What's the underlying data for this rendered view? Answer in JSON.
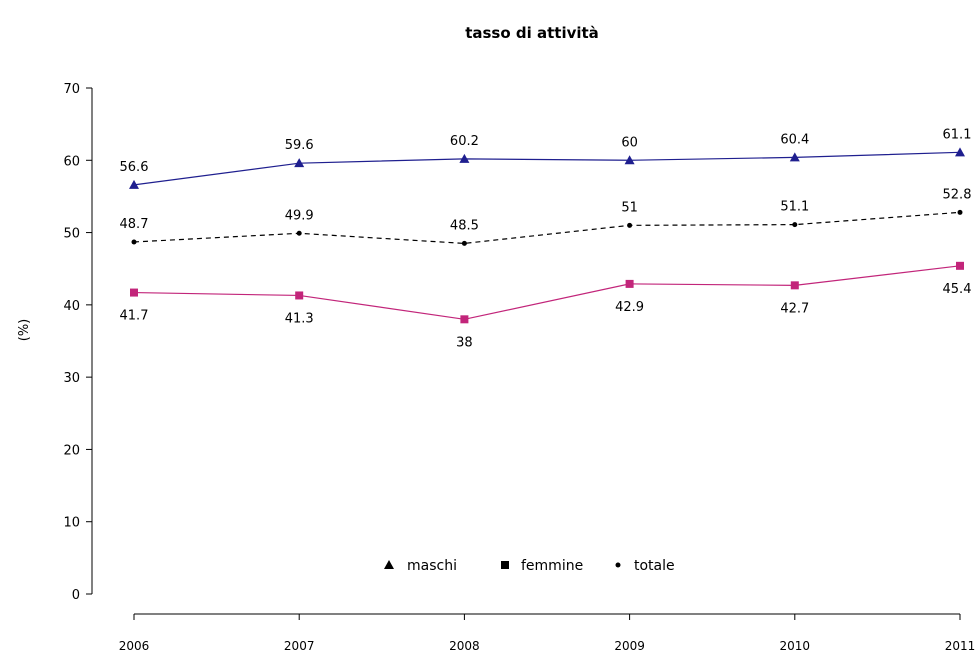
{
  "chart_data": {
    "type": "line",
    "title": "tasso di attività",
    "xlabel": "",
    "ylabel": "(%)",
    "x": [
      "2006",
      "2007",
      "2008",
      "2009",
      "2010",
      "2011"
    ],
    "ylim": [
      0,
      70
    ],
    "yticks": [
      0,
      10,
      20,
      30,
      40,
      50,
      60,
      70
    ],
    "grid": false,
    "legend_position": "bottom-center",
    "series": [
      {
        "name": "maschi",
        "values": [
          56.6,
          59.6,
          60.2,
          60,
          60.4,
          61.1
        ],
        "labels": [
          "56.6",
          "59.6",
          "60.2",
          "60",
          "60.4",
          "61.1"
        ],
        "color": "#1f1f8f",
        "marker": "triangle",
        "line_style": "solid",
        "label_pos": "above"
      },
      {
        "name": "femmine",
        "values": [
          41.7,
          41.3,
          38,
          42.9,
          42.7,
          45.4
        ],
        "labels": [
          "41.7",
          "41.3",
          "38",
          "42.9",
          "42.7",
          "45.4"
        ],
        "color": "#c2257a",
        "marker": "square",
        "line_style": "solid",
        "label_pos": "below"
      },
      {
        "name": "totale",
        "values": [
          48.7,
          49.9,
          48.5,
          51,
          51.1,
          52.8
        ],
        "labels": [
          "48.7",
          "49.9",
          "48.5",
          "51",
          "51.1",
          "52.8"
        ],
        "color": "#000000",
        "marker": "circle",
        "line_style": "dashed",
        "label_pos": "above"
      }
    ]
  }
}
